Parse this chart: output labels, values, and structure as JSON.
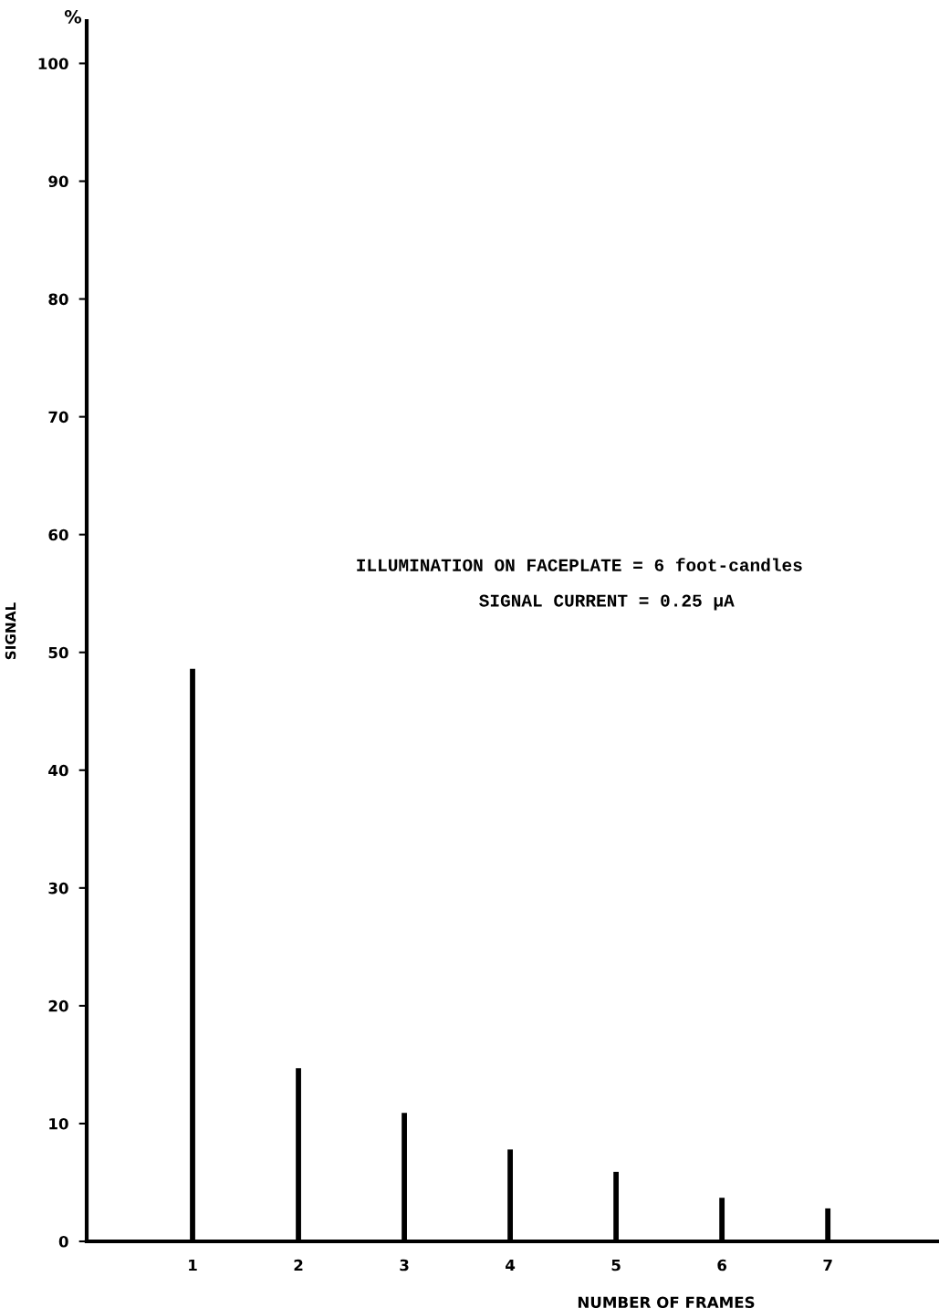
{
  "chart_data": {
    "type": "bar",
    "xlabel": "NUMBER OF FRAMES",
    "ylabel": "SIGNAL",
    "x": [
      1,
      2,
      3,
      4,
      5,
      6,
      7
    ],
    "values": [
      48.6,
      14.7,
      10.9,
      7.8,
      5.9,
      3.7,
      2.8
    ],
    "color": "#000000",
    "xlim": [
      0,
      8.05
    ],
    "xticks": [
      1,
      2,
      3,
      4,
      5,
      6,
      7
    ],
    "ylim": [
      0,
      103.6
    ],
    "yticks": [
      0,
      10,
      20,
      30,
      40,
      50,
      60,
      70,
      80,
      90,
      100
    ],
    "grid": false,
    "annotations": [
      "%",
      "ILLUMINATION ON FACEPLATE = 6 foot-candles",
      "SIGNAL CURRENT = 0.25 μA"
    ]
  }
}
